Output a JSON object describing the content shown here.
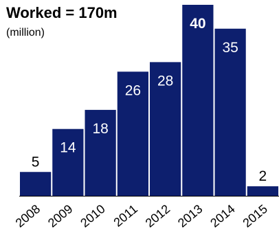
{
  "chart_data": {
    "type": "bar",
    "title": "Worked = 170m",
    "subtitle": "(million)",
    "categories": [
      "2008",
      "2009",
      "2010",
      "2011",
      "2012",
      "2013",
      "2014",
      "2015"
    ],
    "values": [
      5,
      14,
      18,
      26,
      28,
      40,
      35,
      2
    ],
    "data_labels": [
      "5",
      "14",
      "18",
      "26",
      "28",
      "40",
      "35",
      "2"
    ],
    "highlight_label_index": 5,
    "xlabel": "",
    "ylabel": "",
    "ylim": [
      0,
      40
    ],
    "grid": false,
    "legend": "none",
    "bar_color": "#0d1f6e",
    "baseline_color": "#000000"
  }
}
